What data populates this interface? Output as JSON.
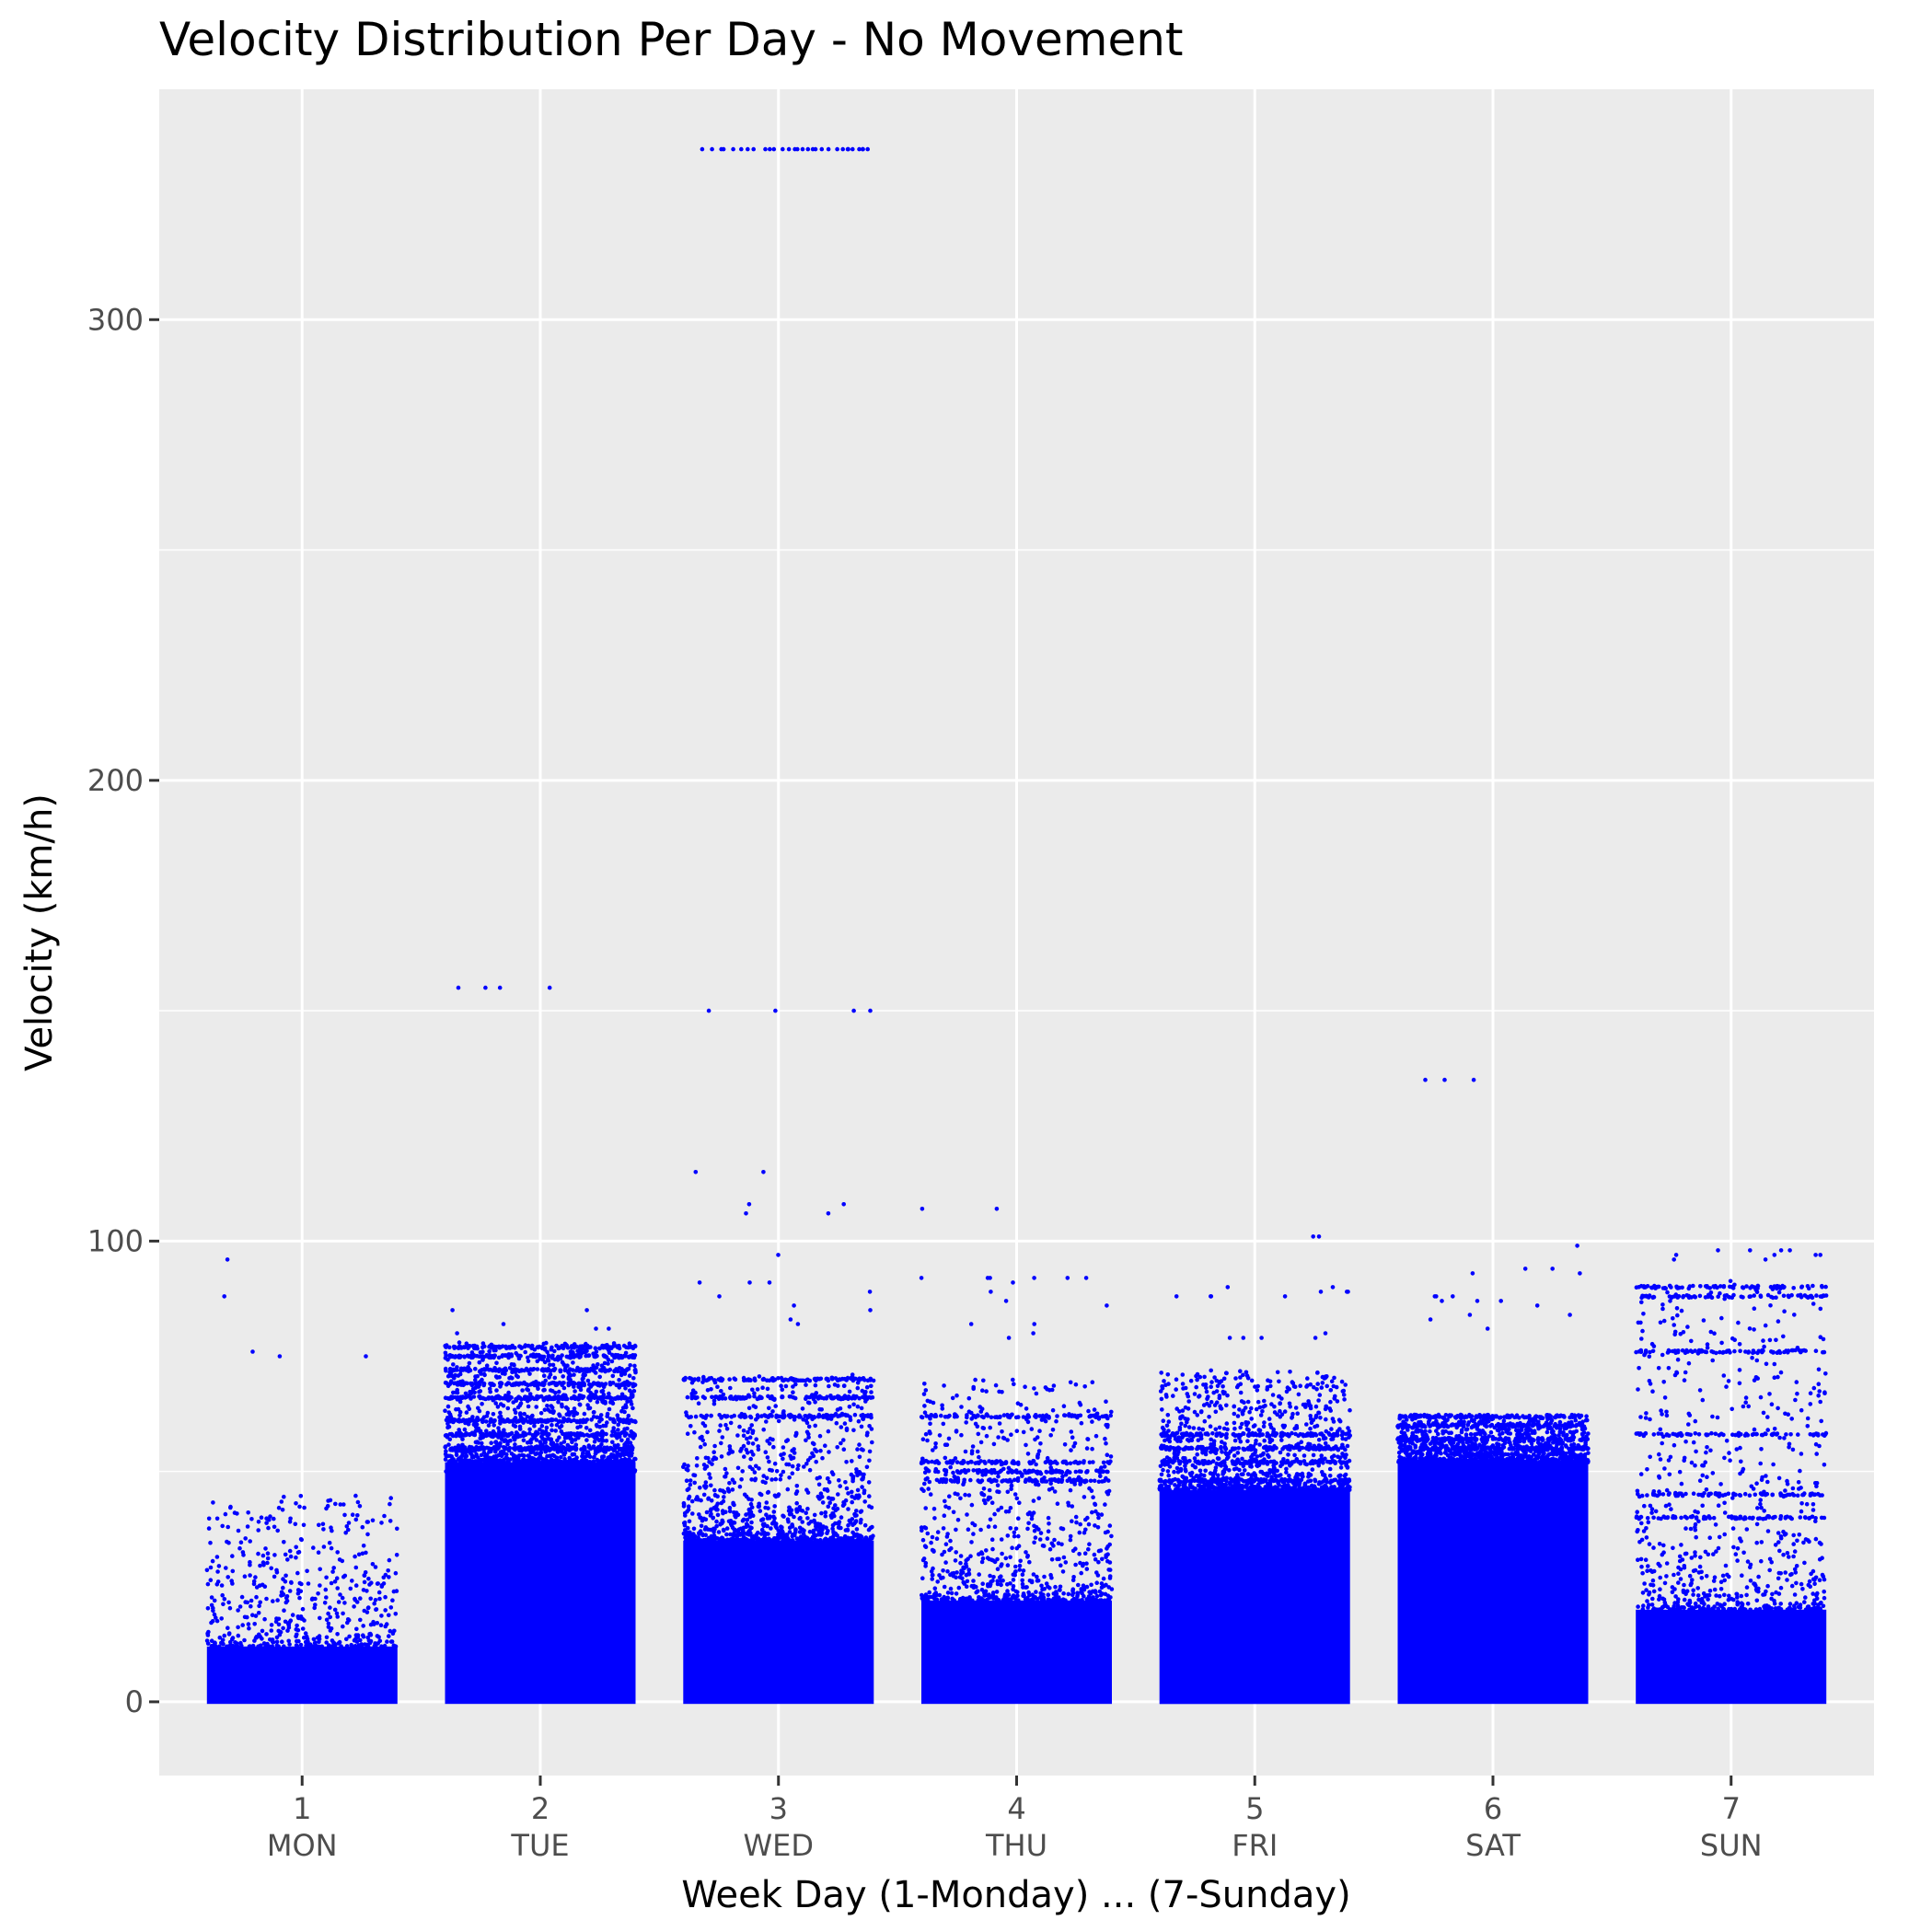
{
  "chart_data": {
    "type": "scatter",
    "title": "Velocity Distribution Per Day - No Movement",
    "xlabel": "Week Day (1-Monday) ... (7-Sunday)",
    "ylabel": "Velocity (km/h)",
    "ylim": [
      -16,
      350
    ],
    "y_ticks": [
      0,
      100,
      200,
      300
    ],
    "y_minor_ticks": [
      50,
      150,
      250
    ],
    "grid": true,
    "point_color": "#0000ff",
    "panel_color": "#ebebeb",
    "grid_color": "#ffffff",
    "categories": [
      {
        "x": 1,
        "number": "1",
        "day": "MON",
        "density": 1.0,
        "dense_max": 12,
        "scatter_max": 45,
        "bands": [],
        "outliers": [
          96,
          88,
          76,
          75,
          75
        ]
      },
      {
        "x": 2,
        "number": "2",
        "day": "TUE",
        "density": 2.2,
        "dense_max": 52,
        "scatter_max": 78,
        "bands": [
          50,
          55,
          58,
          61,
          66,
          69,
          72,
          75,
          77
        ],
        "outliers": [
          155,
          155,
          155,
          155,
          85,
          85,
          82,
          81,
          81,
          80
        ]
      },
      {
        "x": 3,
        "number": "3",
        "day": "WED",
        "density": 1.8,
        "dense_max": 35,
        "scatter_max": 71,
        "bands": [
          62,
          66,
          70
        ],
        "outliers": [
          337,
          337,
          337,
          337,
          337,
          337,
          337,
          337,
          337,
          337,
          337,
          337,
          337,
          337,
          337,
          337,
          337,
          337,
          337,
          337,
          337,
          337,
          337,
          337,
          337,
          337,
          337,
          337,
          337,
          337,
          150,
          150,
          150,
          150,
          115,
          115,
          108,
          108,
          106,
          106,
          97,
          91,
          91,
          91,
          89,
          88,
          86,
          85,
          83,
          82
        ]
      },
      {
        "x": 4,
        "number": "4",
        "day": "THU",
        "density": 1.5,
        "dense_max": 22,
        "scatter_max": 70,
        "bands": [
          48,
          50,
          52,
          62
        ],
        "outliers": [
          107,
          107,
          92,
          92,
          92,
          92,
          92,
          92,
          91,
          89,
          87,
          86,
          82,
          82,
          80,
          79
        ]
      },
      {
        "x": 5,
        "number": "5",
        "day": "FRI",
        "density": 1.9,
        "dense_max": 46,
        "scatter_max": 72,
        "bands": [
          48,
          52,
          55,
          58
        ],
        "outliers": [
          101,
          101,
          90,
          90,
          89,
          89,
          89,
          88,
          88,
          88,
          88,
          80,
          79,
          79,
          79,
          79
        ]
      },
      {
        "x": 6,
        "number": "6",
        "day": "SAT",
        "density": 2.1,
        "dense_max": 52,
        "scatter_max": 62,
        "bands": [
          55,
          57,
          60,
          62
        ],
        "outliers": [
          135,
          135,
          135,
          99,
          94,
          94,
          93,
          93,
          88,
          88,
          88,
          87,
          87,
          87,
          86,
          84,
          84,
          83,
          81
        ]
      },
      {
        "x": 7,
        "number": "7",
        "day": "SUN",
        "density": 1.3,
        "dense_max": 20,
        "scatter_max": 92,
        "bands": [
          40,
          45,
          58,
          76,
          88,
          90
        ],
        "outliers": [
          98,
          98,
          98,
          98,
          97,
          97,
          97,
          97,
          96,
          96
        ]
      }
    ]
  }
}
